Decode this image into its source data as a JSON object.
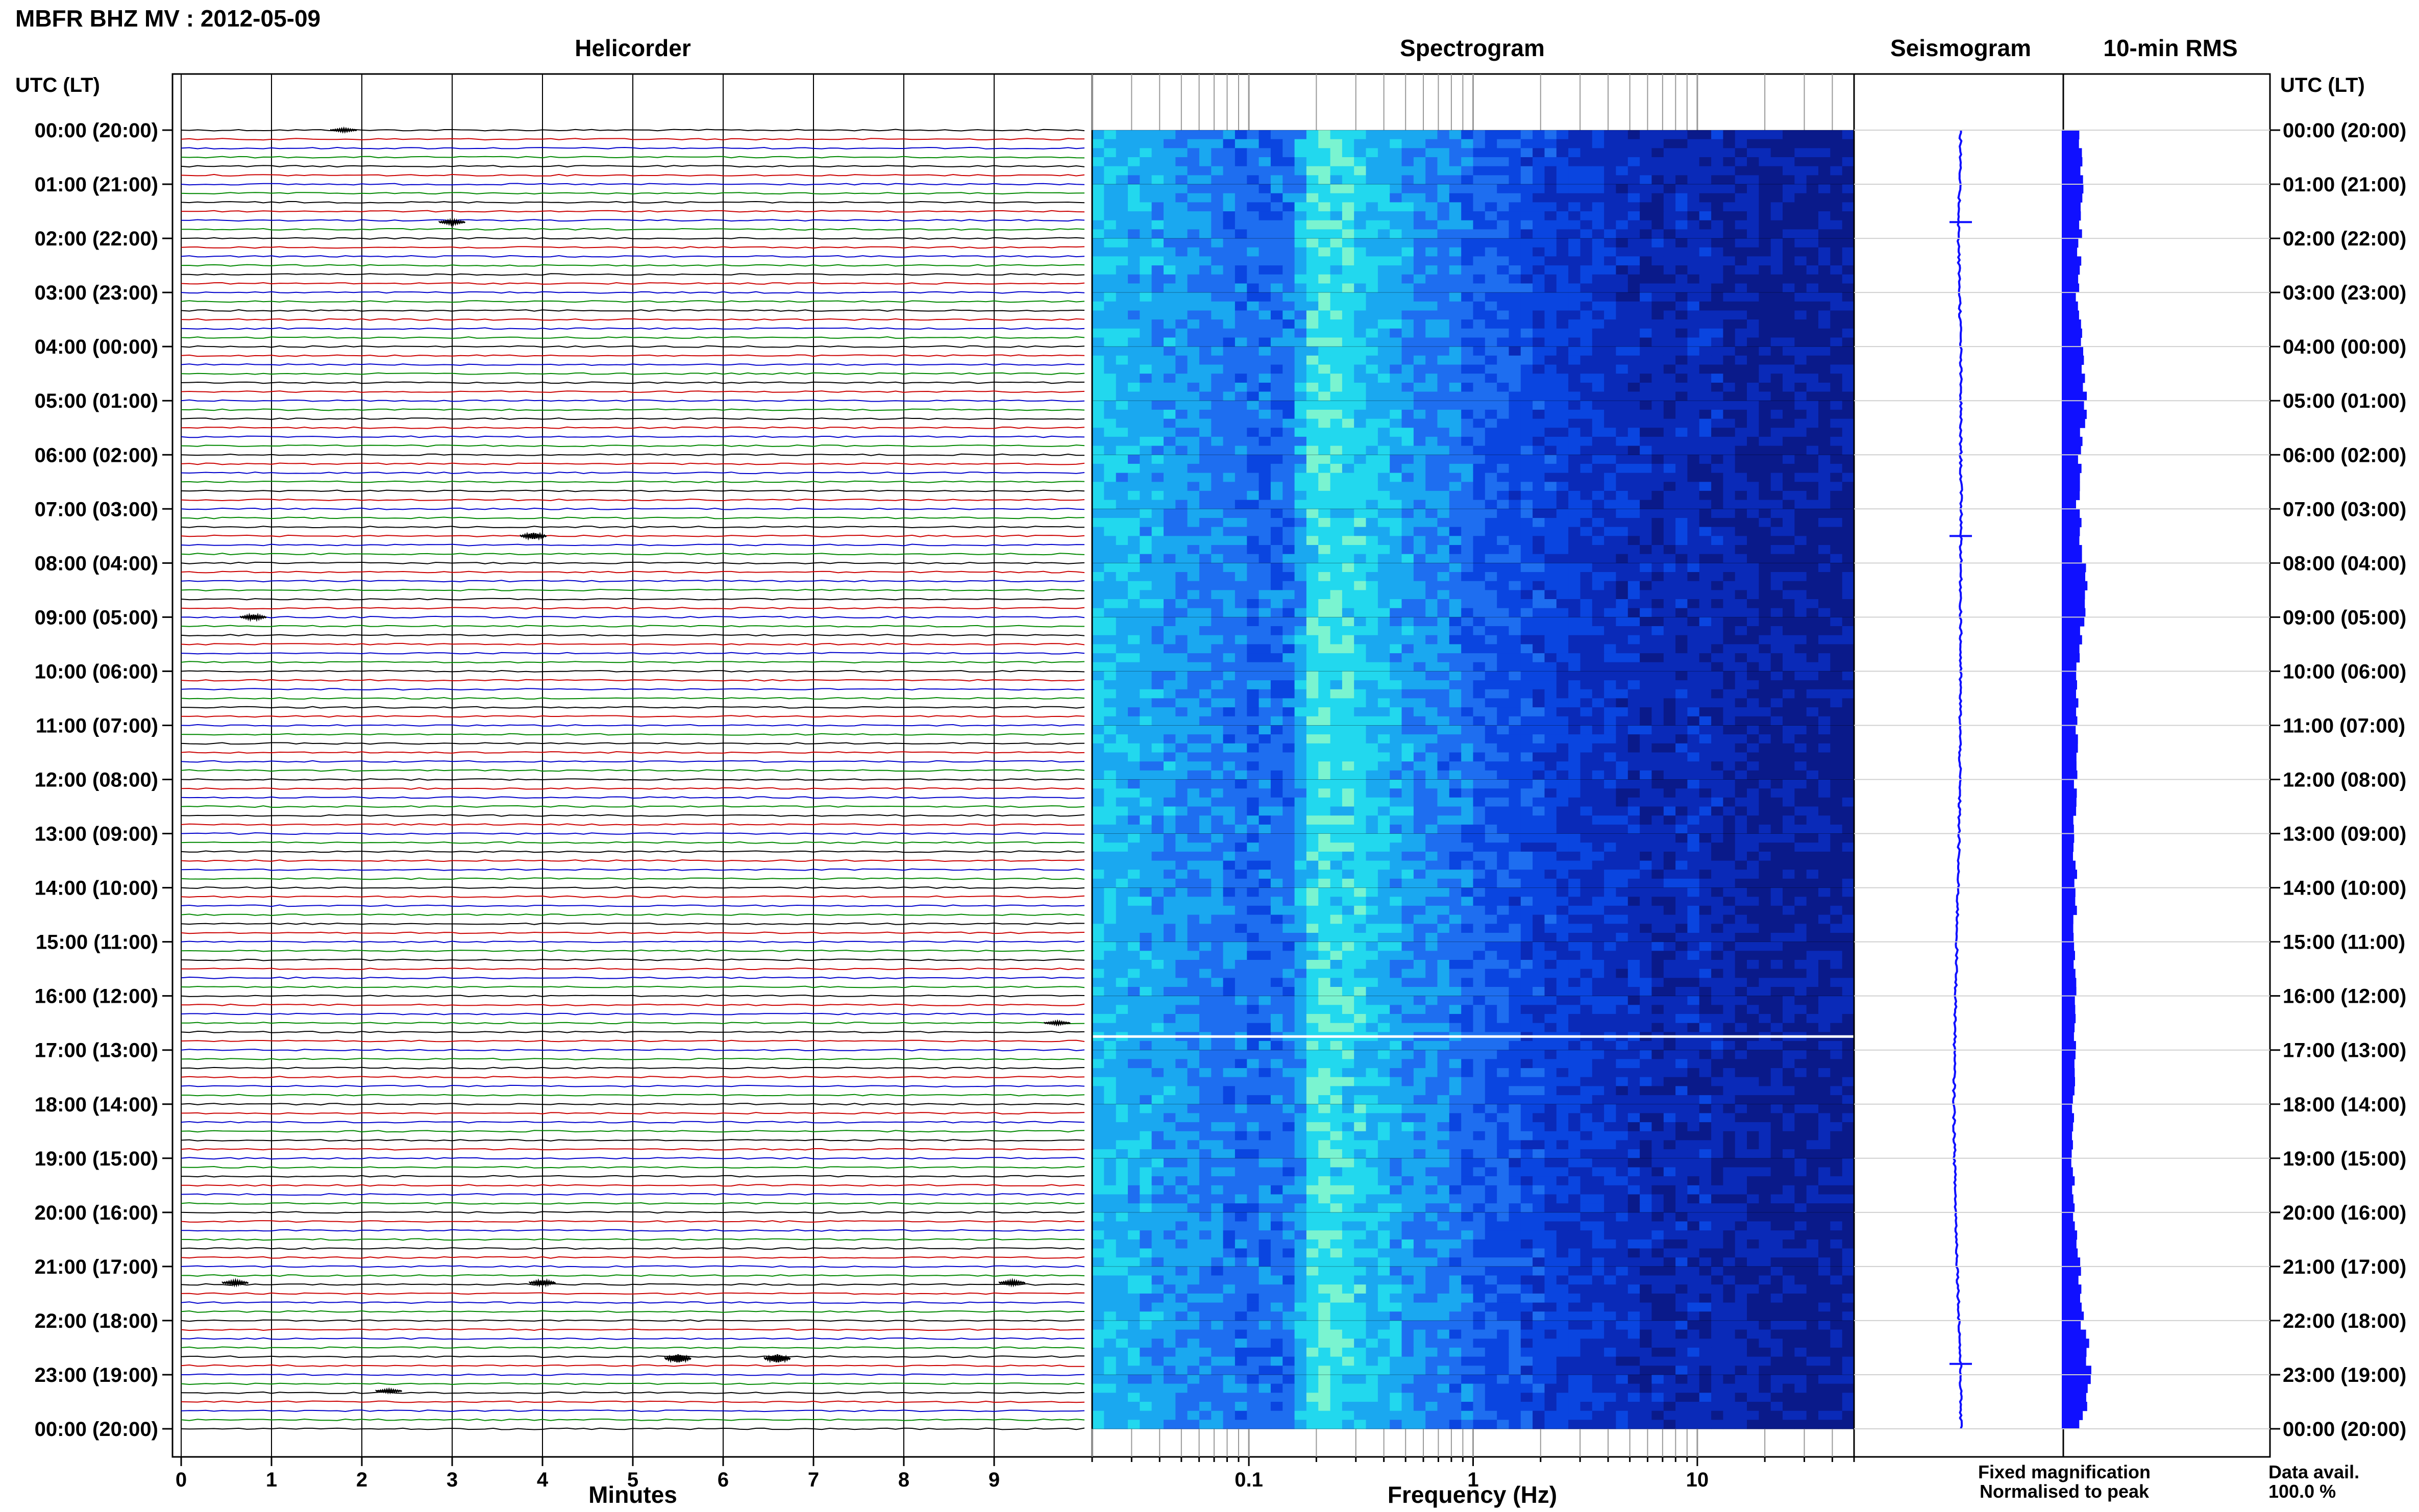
{
  "figure": {
    "title": "MBFR BHZ MV : 2012-05-09",
    "left_axis_label": "UTC (LT)",
    "right_axis_label": "UTC (LT)",
    "legend": {
      "fixed_label": "Fixed magnification",
      "normalised_label": "Normalised to peak",
      "fixed_color": "#1010ff",
      "normalised_color": "#ff1010"
    },
    "data_avail_label": "Data avail.",
    "data_avail_value": "100.0 %"
  },
  "chart_data": [
    {
      "type": "line",
      "title": "Helicorder",
      "xlabel": "Minutes",
      "ylabel": "UTC (LT)",
      "x_ticks": [
        "0",
        "1",
        "2",
        "3",
        "4",
        "5",
        "6",
        "7",
        "8",
        "9"
      ],
      "xlim": [
        0,
        10
      ],
      "time_ticks": [
        "00:00 (20:00)",
        "01:00 (21:00)",
        "02:00 (22:00)",
        "03:00 (23:00)",
        "04:00 (00:00)",
        "05:00 (01:00)",
        "06:00 (02:00)",
        "07:00 (03:00)",
        "08:00 (04:00)",
        "09:00 (05:00)",
        "10:00 (06:00)",
        "11:00 (07:00)",
        "12:00 (08:00)",
        "13:00 (09:00)",
        "14:00 (10:00)",
        "15:00 (11:00)",
        "16:00 (12:00)",
        "17:00 (13:00)",
        "18:00 (14:00)",
        "19:00 (15:00)",
        "20:00 (16:00)",
        "21:00 (17:00)",
        "22:00 (18:00)",
        "23:00 (19:00)",
        "00:00 (20:00)"
      ],
      "lines_per_hour": 6,
      "line_colors": [
        "#000000",
        "#cc0000",
        "#0000cc",
        "#008800"
      ],
      "events": [
        {
          "hour": 0.0,
          "minute": 1.8,
          "amp": 3
        },
        {
          "hour": 1.7,
          "minute": 3.0,
          "amp": 4
        },
        {
          "hour": 7.5,
          "minute": 3.9,
          "amp": 6
        },
        {
          "hour": 9.0,
          "minute": 0.8,
          "amp": 5
        },
        {
          "hour": 16.5,
          "minute": 9.7,
          "amp": 3
        },
        {
          "hour": 21.3,
          "minute": 0.6,
          "amp": 4
        },
        {
          "hour": 21.3,
          "minute": 4.0,
          "amp": 5
        },
        {
          "hour": 21.3,
          "minute": 9.2,
          "amp": 4
        },
        {
          "hour": 22.7,
          "minute": 5.5,
          "amp": 8
        },
        {
          "hour": 22.7,
          "minute": 6.6,
          "amp": 8
        },
        {
          "hour": 23.3,
          "minute": 2.3,
          "amp": 3
        }
      ]
    },
    {
      "type": "heatmap",
      "title": "Spectrogram",
      "xlabel": "Frequency (Hz)",
      "x_scale": "log",
      "xlim": [
        0.02,
        50
      ],
      "x_ticks": [
        "0.1",
        "1",
        "10"
      ],
      "colormap": [
        "#0a1a8a",
        "#0a2ab8",
        "#0a45e0",
        "#1e6ef0",
        "#1aa8f0",
        "#22d8ee",
        "#7af4d0"
      ],
      "profile_freqs_hz": [
        0.02,
        0.05,
        0.1,
        0.15,
        0.2,
        0.3,
        0.5,
        0.8,
        1.2,
        2,
        4,
        7,
        10,
        20,
        50
      ],
      "profile_levels": [
        0.72,
        0.6,
        0.48,
        0.5,
        0.85,
        0.78,
        0.62,
        0.52,
        0.42,
        0.34,
        0.26,
        0.18,
        0.22,
        0.12,
        0.1
      ],
      "gap_hour": 16.75
    },
    {
      "type": "line",
      "title": "Seismogram",
      "values_hourly": [
        0.0,
        -0.1,
        -0.2,
        -0.1,
        0.0,
        0.0,
        0.0,
        0.05,
        0.0,
        0.0,
        -0.02,
        -0.05,
        -0.08,
        -0.15,
        -0.25,
        -0.35,
        -0.45,
        -0.55,
        -0.6,
        -0.55,
        -0.45,
        -0.3,
        -0.15,
        0.0,
        0.0
      ],
      "spikes_hour": [
        1.7,
        7.5,
        22.8
      ],
      "color": "#1010ff"
    },
    {
      "type": "bar",
      "title": "10-min RMS",
      "color": "#1010ff",
      "values_hourly": [
        1.1,
        1.2,
        1.0,
        0.9,
        1.1,
        1.3,
        1.0,
        0.9,
        1.4,
        1.2,
        0.9,
        0.8,
        0.8,
        0.7,
        0.8,
        0.7,
        0.8,
        0.7,
        0.6,
        0.6,
        0.7,
        1.0,
        1.2,
        1.6,
        0.9
      ]
    }
  ]
}
